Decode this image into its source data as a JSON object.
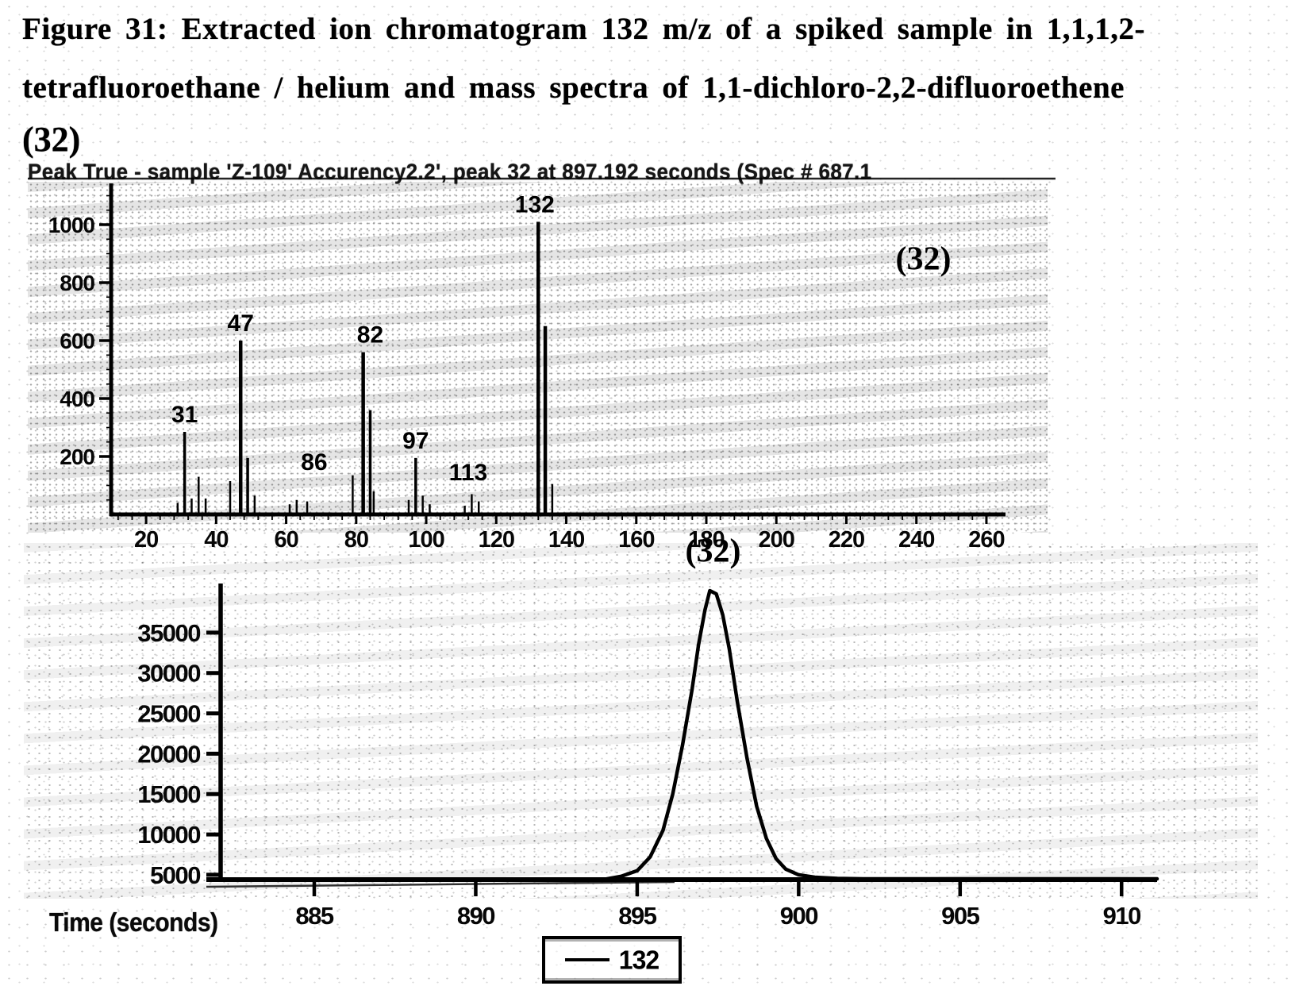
{
  "page": {
    "background": "#ffffff",
    "ink": "#000000"
  },
  "caption": {
    "line1": "Figure 31: Extracted ion chromatogram 132 m/z of a spiked sample in 1,1,1,2-",
    "line2": "tetrafluoroethane / helium and mass spectra of 1,1-dichloro-2,2-difluoroethene",
    "compound_number": "(32)"
  },
  "chart_data": [
    {
      "id": "mass-spectrum",
      "type": "bar",
      "subtype": "mass-spectrum-stick-plot",
      "title": "Peak True - sample 'Z-109' Accurency2.2', peak 32 at 897.192 seconds (Spec # 687.1",
      "xlabel": "",
      "ylabel": "",
      "xlim": [
        10,
        265
      ],
      "ylim": [
        0,
        1150
      ],
      "xticks": [
        20,
        40,
        60,
        80,
        100,
        120,
        140,
        160,
        180,
        200,
        220,
        240,
        260
      ],
      "yticks": [
        200,
        400,
        600,
        800,
        1000
      ],
      "grid": false,
      "peaks": [
        [
          29,
          40
        ],
        [
          31,
          285
        ],
        [
          33,
          55
        ],
        [
          35,
          130
        ],
        [
          37,
          55
        ],
        [
          44,
          115
        ],
        [
          47,
          600
        ],
        [
          49,
          195
        ],
        [
          51,
          65
        ],
        [
          61,
          35
        ],
        [
          63,
          50
        ],
        [
          66,
          45
        ],
        [
          79,
          135
        ],
        [
          82,
          560
        ],
        [
          84,
          360
        ],
        [
          85,
          80
        ],
        [
          95,
          50
        ],
        [
          97,
          195
        ],
        [
          99,
          65
        ],
        [
          101,
          35
        ],
        [
          111,
          30
        ],
        [
          113,
          70
        ],
        [
          115,
          45
        ],
        [
          132,
          1010
        ],
        [
          134,
          650
        ],
        [
          136,
          105
        ]
      ],
      "peak_labels": [
        {
          "label": "31",
          "anchor_mz": 31,
          "anchor_value": 285
        },
        {
          "label": "47",
          "anchor_mz": 47,
          "anchor_value": 600
        },
        {
          "label": "82",
          "anchor_mz": 84,
          "anchor_value": 560
        },
        {
          "label": "86",
          "anchor_mz": 68,
          "anchor_value": 120
        },
        {
          "label": "97",
          "anchor_mz": 97,
          "anchor_value": 195
        },
        {
          "label": "113",
          "anchor_mz": 112,
          "anchor_value": 85
        },
        {
          "label": "132",
          "anchor_mz": 131,
          "anchor_value": 1010
        }
      ],
      "annotation": {
        "text": "(32)",
        "anchor_mz": 242,
        "anchor_value": 845
      }
    },
    {
      "id": "extracted-ion-chromatogram",
      "type": "line",
      "xlabel": "Time (seconds)",
      "ylabel": "",
      "xlim": [
        882.1,
        911.1
      ],
      "ylim": [
        4400,
        46500
      ],
      "xticks": [
        885,
        890,
        895,
        900,
        905,
        910
      ],
      "yticks": [
        5000,
        10000,
        15000,
        20000,
        25000,
        30000,
        35000
      ],
      "grid": false,
      "legend": {
        "position": "bottom-center",
        "entries": [
          "132"
        ]
      },
      "peak": {
        "apex_time": 897.25,
        "apex_intensity": 40200,
        "baseline": 4450
      },
      "annotation": {
        "text": "(32)",
        "anchor_time": 897.35,
        "anchor_value": 43800
      },
      "series": [
        {
          "name": "132",
          "points": [
            [
              882.1,
              4400
            ],
            [
              884,
              4400
            ],
            [
              886,
              4400
            ],
            [
              888,
              4400
            ],
            [
              890,
              4400
            ],
            [
              892,
              4400
            ],
            [
              893.5,
              4400
            ],
            [
              894,
              4450
            ],
            [
              894.5,
              4800
            ],
            [
              895,
              5500
            ],
            [
              895.4,
              7200
            ],
            [
              895.8,
              10500
            ],
            [
              896.1,
              15000
            ],
            [
              896.4,
              21000
            ],
            [
              896.7,
              28000
            ],
            [
              896.9,
              33500
            ],
            [
              897.1,
              37800
            ],
            [
              897.25,
              40200
            ],
            [
              897.45,
              39800
            ],
            [
              897.65,
              37200
            ],
            [
              897.85,
              33000
            ],
            [
              898.1,
              26500
            ],
            [
              898.4,
              19500
            ],
            [
              898.7,
              13500
            ],
            [
              899,
              9500
            ],
            [
              899.3,
              7000
            ],
            [
              899.6,
              5700
            ],
            [
              900,
              5000
            ],
            [
              900.5,
              4700
            ],
            [
              901.2,
              4550
            ],
            [
              902,
              4500
            ],
            [
              904,
              4500
            ],
            [
              906,
              4500
            ],
            [
              908,
              4500
            ],
            [
              910,
              4500
            ],
            [
              911.1,
              4500
            ]
          ]
        }
      ]
    }
  ]
}
